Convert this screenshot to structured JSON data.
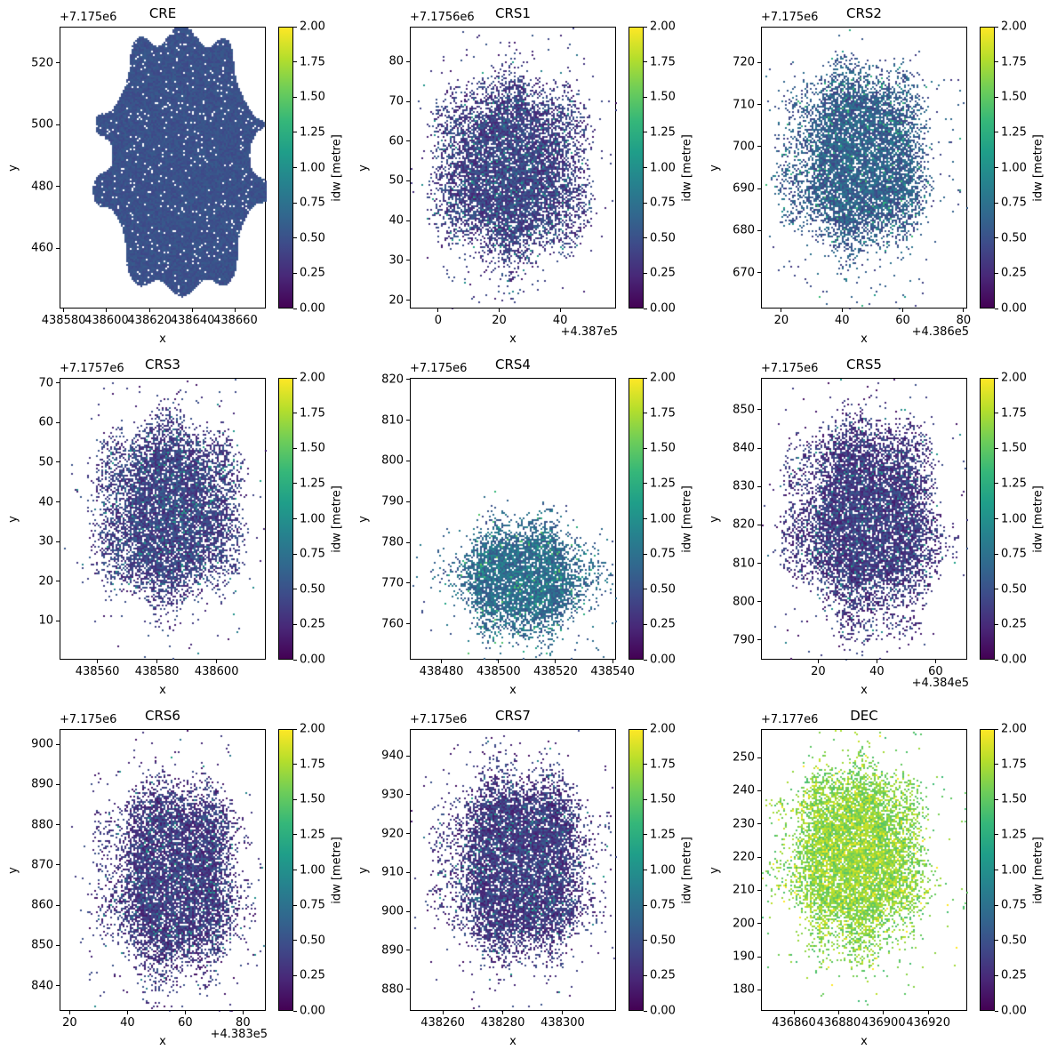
{
  "figure": {
    "colormap": "viridis"
  },
  "chart_data": [
    {
      "type": "heatmap",
      "title": "CRE",
      "xlabel": "x",
      "ylabel": "y",
      "x_offset": "",
      "y_offset": "+7.175e6",
      "xlim": [
        438578.1,
        438674.1
      ],
      "ylim": [
        440.4,
        531.8
      ],
      "xticks": [
        438580,
        438600,
        438620,
        438640,
        438660
      ],
      "xtick_labels": [
        "438580",
        "438600",
        "438620",
        "438640",
        "438660"
      ],
      "yticks": [
        460,
        480,
        500,
        520
      ],
      "ytick_labels": [
        "460",
        "480",
        "500",
        "520"
      ],
      "data_extent": {
        "x": [
          438595,
          438673
        ],
        "y": [
          445,
          531
        ]
      },
      "approx_value": 0.5,
      "coverage": "dense",
      "colorbar": {
        "label": "idw [metre]",
        "range": [
          0,
          2
        ],
        "ticks": [
          "0.00",
          "0.25",
          "0.50",
          "0.75",
          "1.00",
          "1.25",
          "1.50",
          "1.75",
          "2.00"
        ]
      }
    },
    {
      "type": "heatmap",
      "title": "CRS1",
      "xlabel": "x",
      "ylabel": "y",
      "x_offset": "+4.387e5",
      "y_offset": "+7.1756e6",
      "xlim": [
        -9.3,
        58.3
      ],
      "ylim": [
        17.9,
        88.8
      ],
      "xticks": [
        0,
        20,
        40
      ],
      "xtick_labels": [
        "0",
        "20",
        "40"
      ],
      "yticks": [
        20,
        30,
        40,
        50,
        60,
        70,
        80
      ],
      "ytick_labels": [
        "20",
        "30",
        "40",
        "50",
        "60",
        "70",
        "80"
      ],
      "data_extent": {
        "x": [
          -7,
          54
        ],
        "y": [
          22,
          84
        ]
      },
      "approx_value": 0.45,
      "coverage": "sparse",
      "colorbar": {
        "label": "idw [metre]",
        "range": [
          0,
          2
        ],
        "ticks": [
          "0.00",
          "0.25",
          "0.50",
          "0.75",
          "1.00",
          "1.25",
          "1.50",
          "1.75",
          "2.00"
        ]
      }
    },
    {
      "type": "heatmap",
      "title": "CRS2",
      "xlabel": "x",
      "ylabel": "y",
      "x_offset": "+4.386e5",
      "y_offset": "+7.175e6",
      "xlim": [
        13.3,
        81.2
      ],
      "ylim": [
        661.5,
        728.5
      ],
      "xticks": [
        20,
        40,
        60,
        80
      ],
      "xtick_labels": [
        "20",
        "40",
        "60",
        "80"
      ],
      "yticks": [
        670,
        680,
        690,
        700,
        710,
        720
      ],
      "ytick_labels": [
        "670",
        "680",
        "690",
        "700",
        "710",
        "720"
      ],
      "data_extent": {
        "x": [
          16,
          74
        ],
        "y": [
          668,
          726
        ]
      },
      "approx_value": 0.65,
      "coverage": "sparse",
      "colorbar": {
        "label": "idw [metre]",
        "range": [
          0,
          2
        ],
        "ticks": [
          "0.00",
          "0.25",
          "0.50",
          "0.75",
          "1.00",
          "1.25",
          "1.50",
          "1.75",
          "2.00"
        ]
      }
    },
    {
      "type": "heatmap",
      "title": "CRS3",
      "xlabel": "x",
      "ylabel": "y",
      "x_offset": "",
      "y_offset": "+7.1757e6",
      "xlim": [
        438547.3,
        438616.5
      ],
      "ylim": [
        0.2,
        71.3
      ],
      "xticks": [
        438560,
        438580,
        438600
      ],
      "xtick_labels": [
        "438560",
        "438580",
        "438600"
      ],
      "yticks": [
        10,
        20,
        30,
        40,
        50,
        60,
        70
      ],
      "ytick_labels": [
        "10",
        "20",
        "30",
        "40",
        "50",
        "60",
        "70"
      ],
      "data_extent": {
        "x": [
          438554,
          438613
        ],
        "y": [
          7,
          68
        ]
      },
      "approx_value": 0.45,
      "coverage": "sparse",
      "colorbar": {
        "label": "idw [metre]",
        "range": [
          0,
          2
        ],
        "ticks": [
          "0.00",
          "0.25",
          "0.50",
          "0.75",
          "1.00",
          "1.25",
          "1.50",
          "1.75",
          "2.00"
        ]
      }
    },
    {
      "type": "heatmap",
      "title": "CRS4",
      "xlabel": "x",
      "ylabel": "y",
      "x_offset": "",
      "y_offset": "+7.175e6",
      "xlim": [
        438468.9,
        438541.2
      ],
      "ylim": [
        751.2,
        820.4
      ],
      "xticks": [
        438480,
        438500,
        438520,
        438540
      ],
      "xtick_labels": [
        "438480",
        "438500",
        "438520",
        "438540"
      ],
      "yticks": [
        760,
        770,
        780,
        790,
        800,
        810,
        820
      ],
      "ytick_labels": [
        "760",
        "770",
        "780",
        "790",
        "800",
        "810",
        "820"
      ],
      "data_extent": {
        "x": [
          438478,
          438538
        ],
        "y": [
          752,
          791
        ]
      },
      "approx_value": 0.75,
      "coverage": "sparse",
      "colorbar": {
        "label": "idw [metre]",
        "range": [
          0,
          2
        ],
        "ticks": [
          "0.00",
          "0.25",
          "0.50",
          "0.75",
          "1.00",
          "1.25",
          "1.50",
          "1.75",
          "2.00"
        ]
      }
    },
    {
      "type": "heatmap",
      "title": "CRS5",
      "xlabel": "x",
      "ylabel": "y",
      "x_offset": "+4.384e5",
      "y_offset": "+7.175e6",
      "xlim": [
        0.5,
        70.8
      ],
      "ylim": [
        784.9,
        858.3
      ],
      "xticks": [
        20,
        40,
        60
      ],
      "xtick_labels": [
        "20",
        "40",
        "60"
      ],
      "yticks": [
        790,
        800,
        810,
        820,
        830,
        840,
        850
      ],
      "ytick_labels": [
        "790",
        "800",
        "810",
        "820",
        "830",
        "840",
        "850"
      ],
      "data_extent": {
        "x": [
          4,
          68
        ],
        "y": [
          788,
          855
        ]
      },
      "approx_value": 0.4,
      "coverage": "sparse",
      "colorbar": {
        "label": "idw [metre]",
        "range": [
          0,
          2
        ],
        "ticks": [
          "0.00",
          "0.25",
          "0.50",
          "0.75",
          "1.00",
          "1.25",
          "1.50",
          "1.75",
          "2.00"
        ]
      }
    },
    {
      "type": "heatmap",
      "title": "CRS6",
      "xlabel": "x",
      "ylabel": "y",
      "x_offset": "+4.383e5",
      "y_offset": "+7.175e6",
      "xlim": [
        16.5,
        87.9
      ],
      "ylim": [
        833.7,
        903.8
      ],
      "xticks": [
        20,
        40,
        60,
        80
      ],
      "xtick_labels": [
        "20",
        "40",
        "60",
        "80"
      ],
      "yticks": [
        840,
        850,
        860,
        870,
        880,
        890,
        900
      ],
      "ytick_labels": [
        "840",
        "850",
        "860",
        "870",
        "880",
        "890",
        "900"
      ],
      "data_extent": {
        "x": [
          26,
          86
        ],
        "y": [
          835,
          899
        ]
      },
      "approx_value": 0.4,
      "coverage": "sparse",
      "colorbar": {
        "label": "idw [metre]",
        "range": [
          0,
          2
        ],
        "ticks": [
          "0.00",
          "0.25",
          "0.50",
          "0.75",
          "1.00",
          "1.25",
          "1.50",
          "1.75",
          "2.00"
        ]
      }
    },
    {
      "type": "heatmap",
      "title": "CRS7",
      "xlabel": "x",
      "ylabel": "y",
      "x_offset": "",
      "y_offset": "+7.175e6",
      "xlim": [
        438249,
        438317.8
      ],
      "ylim": [
        874.4,
        946.9
      ],
      "xticks": [
        438260,
        438280,
        438300
      ],
      "xtick_labels": [
        "438260",
        "438280",
        "438300"
      ],
      "yticks": [
        880,
        890,
        900,
        910,
        920,
        930,
        940
      ],
      "ytick_labels": [
        "880",
        "890",
        "900",
        "910",
        "920",
        "930",
        "940"
      ],
      "data_extent": {
        "x": [
          438254,
          438316
        ],
        "y": [
          880,
          945
        ]
      },
      "approx_value": 0.4,
      "coverage": "sparse",
      "colorbar": {
        "label": "idw [metre]",
        "range": [
          0,
          2
        ],
        "ticks": [
          "0.00",
          "0.25",
          "0.50",
          "0.75",
          "1.00",
          "1.25",
          "1.50",
          "1.75",
          "2.00"
        ]
      }
    },
    {
      "type": "heatmap",
      "title": "DEC",
      "xlabel": "x",
      "ylabel": "y",
      "x_offset": "",
      "y_offset": "+7.177e6",
      "xlim": [
        436845.3,
        436937.4
      ],
      "ylim": [
        173.7,
        258.6
      ],
      "xticks": [
        436860,
        436880,
        436900,
        436920
      ],
      "xtick_labels": [
        "436860",
        "436880",
        "436900",
        "436920"
      ],
      "yticks": [
        180,
        190,
        200,
        210,
        220,
        230,
        240,
        250
      ],
      "ytick_labels": [
        "180",
        "190",
        "200",
        "210",
        "220",
        "230",
        "240",
        "250"
      ],
      "data_extent": {
        "x": [
          436847,
          436927
        ],
        "y": [
          184,
          257
        ]
      },
      "approx_value": 1.7,
      "coverage": "sparse",
      "colorbar": {
        "label": "idw [metre]",
        "range": [
          0,
          2
        ],
        "ticks": [
          "0.00",
          "0.25",
          "0.50",
          "0.75",
          "1.00",
          "1.25",
          "1.50",
          "1.75",
          "2.00"
        ]
      }
    }
  ]
}
